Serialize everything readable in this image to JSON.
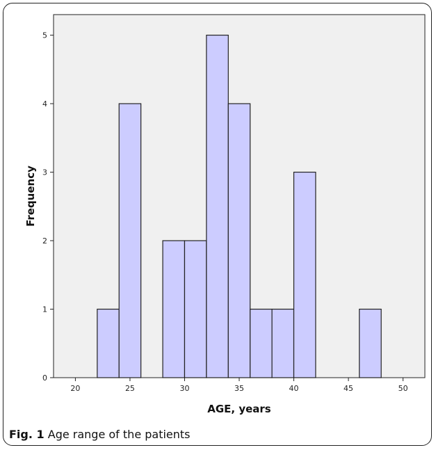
{
  "caption": {
    "label": "Fig. 1",
    "text": "Age range of the patients"
  },
  "chart_data": {
    "type": "bar",
    "subtype": "histogram",
    "xlabel": "AGE, years",
    "ylabel": "Frequency",
    "xlim": [
      18,
      52
    ],
    "ylim": [
      0,
      5.3
    ],
    "xticks": [
      20,
      25,
      30,
      35,
      40,
      45,
      50
    ],
    "yticks": [
      0,
      1,
      2,
      3,
      4,
      5
    ],
    "bin_width": 2,
    "bins": [
      {
        "start": 22,
        "end": 24,
        "count": 1
      },
      {
        "start": 24,
        "end": 26,
        "count": 4
      },
      {
        "start": 28,
        "end": 30,
        "count": 2
      },
      {
        "start": 30,
        "end": 32,
        "count": 2
      },
      {
        "start": 32,
        "end": 34,
        "count": 5
      },
      {
        "start": 34,
        "end": 36,
        "count": 4
      },
      {
        "start": 36,
        "end": 38,
        "count": 1
      },
      {
        "start": 38,
        "end": 40,
        "count": 1
      },
      {
        "start": 40,
        "end": 42,
        "count": 3
      },
      {
        "start": 46,
        "end": 48,
        "count": 1
      }
    ],
    "grid": false,
    "colors": {
      "bar_fill": "#ccccff",
      "bar_stroke": "#222222",
      "plot_background": "#f0f0f0",
      "axis": "#222222"
    }
  }
}
